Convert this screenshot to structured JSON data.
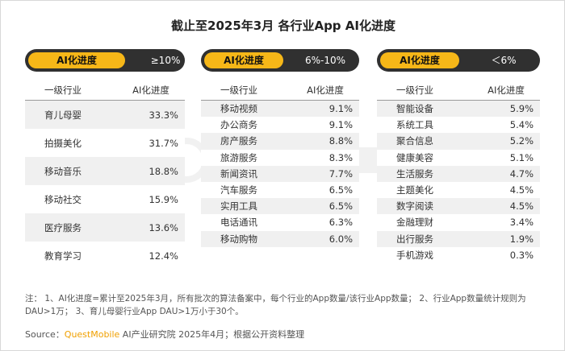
{
  "title": "截止至2025年3月 各行业App AI化进度",
  "column_headers": {
    "industry": "一级行业",
    "progress": "AI化进度"
  },
  "pill_label": "AI化进度",
  "colors": {
    "accent": "#f6b718",
    "pill_dark": "#303030",
    "row_alt": "#f0f0f0",
    "brand": "#f0a000"
  },
  "chart_data": [
    {
      "type": "table",
      "range": "≥10%",
      "rows": [
        {
          "industry": "育儿母婴",
          "value": "33.3%"
        },
        {
          "industry": "拍摄美化",
          "value": "31.7%"
        },
        {
          "industry": "移动音乐",
          "value": "18.8%"
        },
        {
          "industry": "移动社交",
          "value": "15.9%"
        },
        {
          "industry": "医疗服务",
          "value": "13.6%"
        },
        {
          "industry": "教育学习",
          "value": "12.4%"
        }
      ]
    },
    {
      "type": "table",
      "range": "6%-10%",
      "rows": [
        {
          "industry": "移动视频",
          "value": "9.1%"
        },
        {
          "industry": "办公商务",
          "value": "9.1%"
        },
        {
          "industry": "房产服务",
          "value": "8.8%"
        },
        {
          "industry": "旅游服务",
          "value": "8.3%"
        },
        {
          "industry": "新闻资讯",
          "value": "7.7%"
        },
        {
          "industry": "汽车服务",
          "value": "6.5%"
        },
        {
          "industry": "实用工具",
          "value": "6.5%"
        },
        {
          "industry": "电话通讯",
          "value": "6.3%"
        },
        {
          "industry": "移动购物",
          "value": "6.0%"
        }
      ]
    },
    {
      "type": "table",
      "range": "＜6%",
      "rows": [
        {
          "industry": "智能设备",
          "value": "5.9%"
        },
        {
          "industry": "系统工具",
          "value": "5.4%"
        },
        {
          "industry": "聚合信息",
          "value": "5.2%"
        },
        {
          "industry": "健康美容",
          "value": "5.1%"
        },
        {
          "industry": "生活服务",
          "value": "4.7%"
        },
        {
          "industry": "主题美化",
          "value": "4.5%"
        },
        {
          "industry": "数字阅读",
          "value": "4.5%"
        },
        {
          "industry": "金融理财",
          "value": "3.4%"
        },
        {
          "industry": "出行服务",
          "value": "1.9%"
        },
        {
          "industry": "手机游戏",
          "value": "0.3%"
        }
      ]
    }
  ],
  "note": "注： 1、AI化进度=累计至2025年3月，所有批次的算法备案中，每个行业的App数量/该行业App数量； 2、行业App数量统计规则为DAU>1万； 3、育儿母婴行业App DAU>1万小于30个。",
  "source": {
    "prefix": "Source：",
    "brand": "QuestMobile",
    "rest": " AI产业研究院 2025年4月；根据公开资料整理"
  }
}
